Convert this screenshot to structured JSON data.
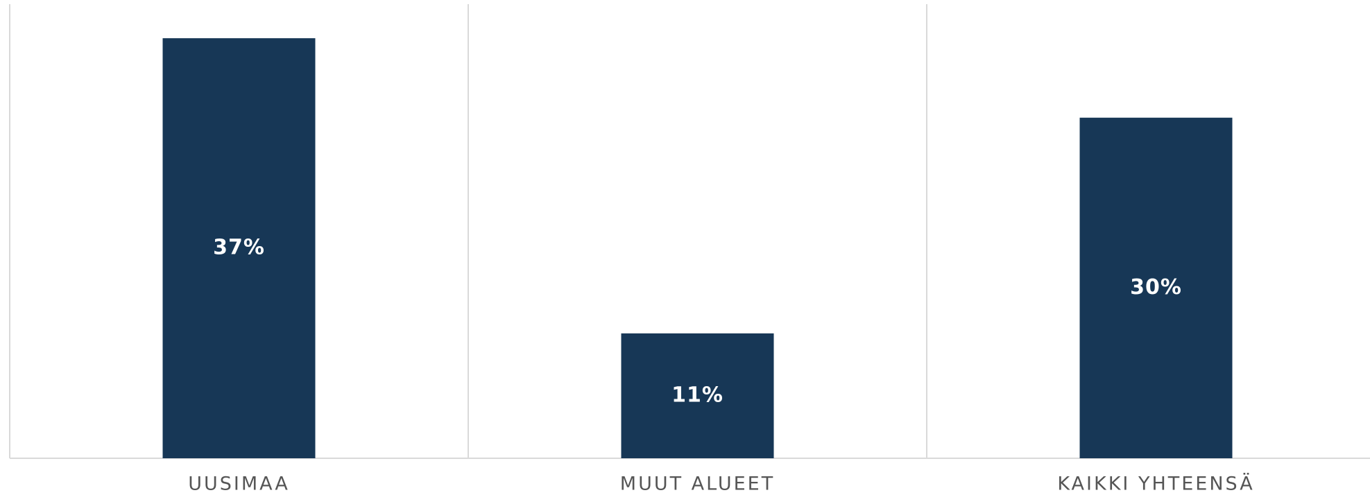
{
  "chart_data": {
    "type": "bar",
    "categories": [
      "UUSIMAA",
      "MUUT ALUEET",
      "KAIKKI YHTEENSÄ"
    ],
    "values": [
      37,
      11,
      30
    ],
    "value_labels": [
      "37%",
      "11%",
      "30%"
    ],
    "color": "#173756",
    "ylim": [
      0,
      40
    ]
  }
}
